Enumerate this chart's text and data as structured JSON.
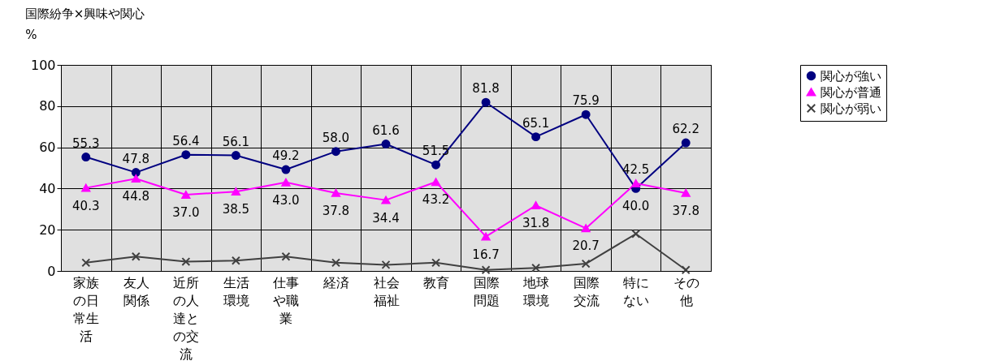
{
  "chart_data": {
    "type": "line",
    "title": "国際紛争×興味や関心",
    "ylabel": "%",
    "categories": [
      "家族の日常生活",
      "友人関係",
      "近所の人達との交流",
      "生活環境",
      "仕事や職業",
      "経済",
      "社会福祉",
      "教育",
      "国際問題",
      "地球環境",
      "国際交流",
      "特にない",
      "その他"
    ],
    "series": [
      {
        "name": "関心が強い",
        "color": "#000080",
        "marker": "circle",
        "values": [
          55.3,
          47.8,
          56.4,
          56.1,
          49.2,
          58.0,
          61.6,
          51.5,
          81.8,
          65.1,
          75.9,
          40.0,
          62.2
        ],
        "value_labels": [
          "55.3",
          "47.8",
          "56.4",
          "56.1",
          "49.2",
          "58.0",
          "61.6",
          "51.5",
          "81.8",
          "65.1",
          "75.9",
          "40.0",
          "62.2"
        ]
      },
      {
        "name": "関心が普通",
        "color": "#ff00ff",
        "marker": "triangle",
        "values": [
          40.3,
          44.8,
          37.0,
          38.5,
          43.0,
          37.8,
          34.4,
          43.2,
          16.7,
          31.8,
          20.7,
          42.5,
          37.8
        ],
        "value_labels": [
          "40.3",
          "44.8",
          "37.0",
          "38.5",
          "43.0",
          "37.8",
          "34.4",
          "43.2",
          "16.7",
          "31.8",
          "20.7",
          "42.5",
          "37.8"
        ]
      },
      {
        "name": "関心が弱い",
        "color": "#404040",
        "marker": "cross",
        "values": [
          4,
          7,
          4.5,
          5,
          7,
          4,
          3,
          4,
          0.5,
          1.5,
          3.5,
          18,
          0.5
        ]
      }
    ],
    "ylim": [
      0,
      100
    ],
    "yticks": [
      0,
      20,
      40,
      60,
      80,
      100
    ],
    "grid": true,
    "legend": "right",
    "line_style": "solid"
  }
}
